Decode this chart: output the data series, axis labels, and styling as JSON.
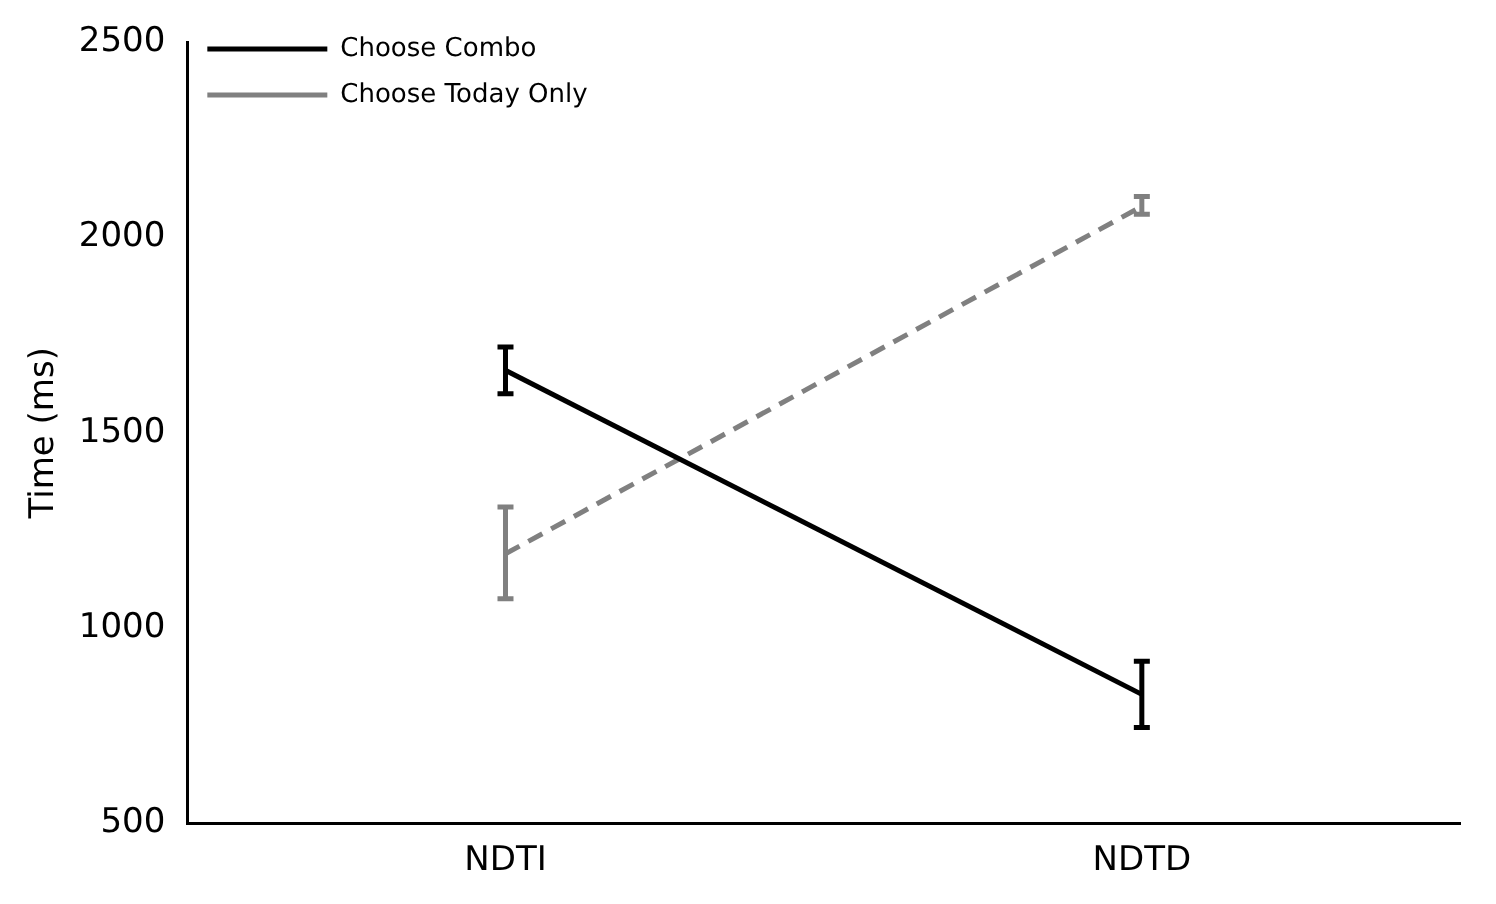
{
  "chart_data": {
    "type": "line",
    "ylabel": "Time (ms)",
    "categories": [
      "NDTI",
      "NDTD"
    ],
    "series": [
      {
        "name": "Choose Combo",
        "color": "#000000",
        "values": [
          1660,
          830
        ],
        "errors": [
          [
            1600,
            1720
          ],
          [
            745,
            915
          ]
        ],
        "line_style": "solid"
      },
      {
        "name": "Choose Today Only",
        "color": "#808080",
        "values": [
          1190,
          2080
        ],
        "errors": [
          [
            1075,
            1310
          ],
          [
            2060,
            2105
          ]
        ],
        "line_style": "dashed"
      }
    ],
    "ylim": [
      500,
      2500
    ],
    "yticks": [
      500,
      1000,
      1500,
      2000,
      2500
    ],
    "grid": false,
    "legend": "top left"
  }
}
